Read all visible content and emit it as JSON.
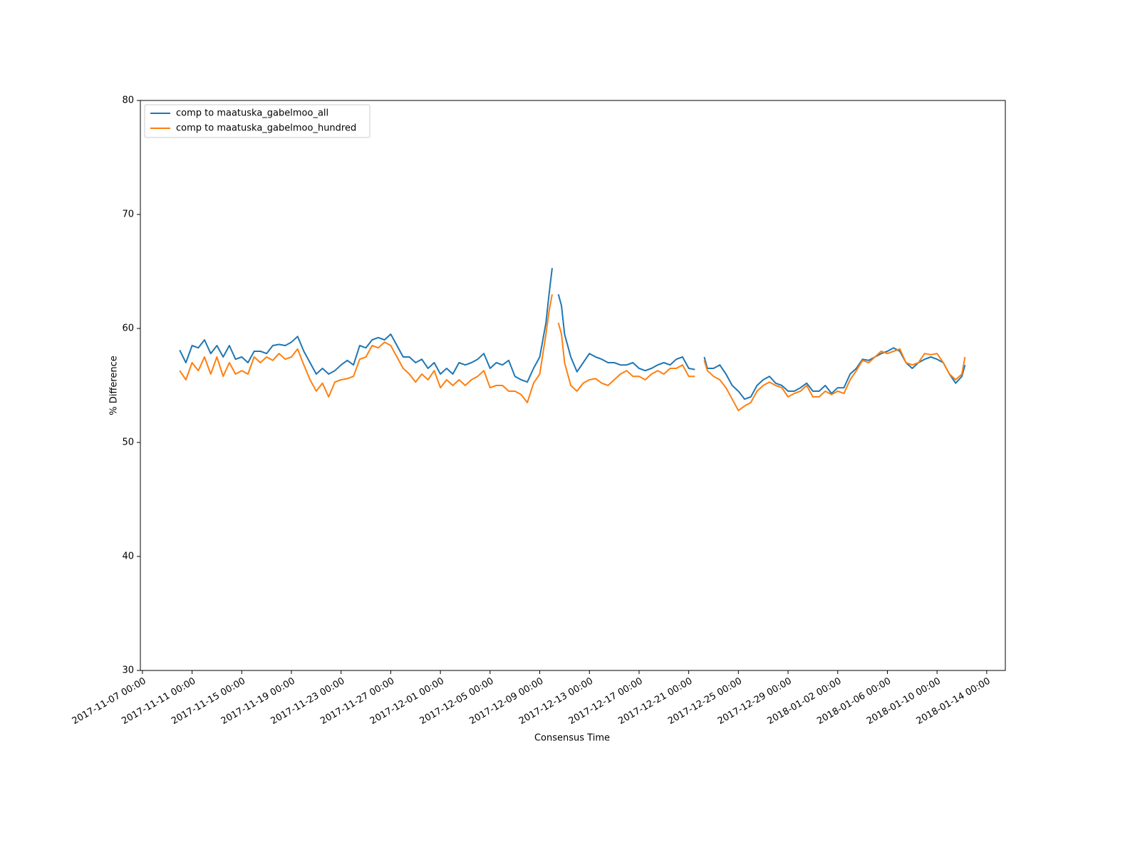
{
  "chart_data": {
    "type": "line",
    "xlabel": "Consensus Time",
    "ylabel": "% Difference",
    "x": [
      "2017-11-10 00:00",
      "2017-11-10 12:00",
      "2017-11-11 00:00",
      "2017-11-11 12:00",
      "2017-11-12 00:00",
      "2017-11-12 12:00",
      "2017-11-13 00:00",
      "2017-11-13 12:00",
      "2017-11-14 00:00",
      "2017-11-14 12:00",
      "2017-11-15 00:00",
      "2017-11-15 12:00",
      "2017-11-16 00:00",
      "2017-11-16 12:00",
      "2017-11-17 00:00",
      "2017-11-17 12:00",
      "2017-11-18 00:00",
      "2017-11-18 12:00",
      "2017-11-19 00:00",
      "2017-11-19 12:00",
      "2017-11-20 00:00",
      "2017-11-20 12:00",
      "2017-11-21 00:00",
      "2017-11-21 12:00",
      "2017-11-22 00:00",
      "2017-11-22 12:00",
      "2017-11-23 00:00",
      "2017-11-23 12:00",
      "2017-11-24 00:00",
      "2017-11-24 12:00",
      "2017-11-25 00:00",
      "2017-11-25 12:00",
      "2017-11-26 00:00",
      "2017-11-26 12:00",
      "2017-11-27 00:00",
      "2017-11-27 12:00",
      "2017-11-28 00:00",
      "2017-11-28 12:00",
      "2017-11-29 00:00",
      "2017-11-29 12:00",
      "2017-11-30 00:00",
      "2017-11-30 12:00",
      "2017-12-01 00:00",
      "2017-12-01 12:00",
      "2017-12-02 00:00",
      "2017-12-02 12:00",
      "2017-12-03 00:00",
      "2017-12-03 12:00",
      "2017-12-04 00:00",
      "2017-12-04 12:00",
      "2017-12-05 00:00",
      "2017-12-05 12:00",
      "2017-12-06 00:00",
      "2017-12-06 12:00",
      "2017-12-07 00:00",
      "2017-12-07 12:00",
      "2017-12-08 00:00",
      "2017-12-08 12:00",
      "2017-12-09 00:00",
      "2017-12-09 12:00",
      "2017-12-09 18:00",
      "2017-12-10 00:00",
      "2017-12-10 06:00",
      "2017-12-10 12:00",
      "2017-12-10 18:00",
      "2017-12-11 00:00",
      "2017-12-11 12:00",
      "2017-12-12 00:00",
      "2017-12-12 12:00",
      "2017-12-13 00:00",
      "2017-12-13 12:00",
      "2017-12-14 00:00",
      "2017-12-14 12:00",
      "2017-12-15 00:00",
      "2017-12-15 12:00",
      "2017-12-16 00:00",
      "2017-12-16 12:00",
      "2017-12-17 00:00",
      "2017-12-17 12:00",
      "2017-12-18 00:00",
      "2017-12-18 12:00",
      "2017-12-19 00:00",
      "2017-12-19 12:00",
      "2017-12-20 00:00",
      "2017-12-20 12:00",
      "2017-12-21 00:00",
      "2017-12-21 12:00",
      "2017-12-22 00:00",
      "2017-12-22 06:00",
      "2017-12-22 12:00",
      "2017-12-23 00:00",
      "2017-12-23 12:00",
      "2017-12-24 00:00",
      "2017-12-24 12:00",
      "2017-12-25 00:00",
      "2017-12-25 12:00",
      "2017-12-26 00:00",
      "2017-12-26 12:00",
      "2017-12-27 00:00",
      "2017-12-27 12:00",
      "2017-12-28 00:00",
      "2017-12-28 12:00",
      "2017-12-29 00:00",
      "2017-12-29 12:00",
      "2017-12-30 00:00",
      "2017-12-30 12:00",
      "2017-12-31 00:00",
      "2017-12-31 12:00",
      "2018-01-01 00:00",
      "2018-01-01 12:00",
      "2018-01-02 00:00",
      "2018-01-02 12:00",
      "2018-01-03 00:00",
      "2018-01-03 12:00",
      "2018-01-04 00:00",
      "2018-01-04 12:00",
      "2018-01-05 00:00",
      "2018-01-05 12:00",
      "2018-01-06 00:00",
      "2018-01-06 12:00",
      "2018-01-07 00:00",
      "2018-01-07 12:00",
      "2018-01-08 00:00",
      "2018-01-08 12:00",
      "2018-01-09 00:00",
      "2018-01-09 12:00",
      "2018-01-10 00:00",
      "2018-01-10 12:00",
      "2018-01-11 00:00",
      "2018-01-11 12:00",
      "2018-01-12 00:00",
      "2018-01-12 06:00"
    ],
    "series": [
      {
        "name": "comp to maatuska_gabelmoo_all",
        "color": "#1f77b4",
        "values": [
          58.1,
          57.0,
          58.5,
          58.3,
          59.0,
          57.8,
          58.5,
          57.5,
          58.5,
          57.3,
          57.5,
          57.0,
          58.0,
          58.0,
          57.8,
          58.5,
          58.6,
          58.5,
          58.8,
          59.3,
          58.0,
          57.0,
          56.0,
          56.5,
          56.0,
          56.3,
          56.8,
          57.2,
          56.8,
          58.5,
          58.3,
          59.0,
          59.2,
          59.0,
          59.5,
          58.5,
          57.5,
          57.5,
          57.0,
          57.3,
          56.5,
          57.0,
          56.0,
          56.5,
          56.0,
          57.0,
          56.8,
          57.0,
          57.3,
          57.8,
          56.5,
          57.0,
          56.8,
          57.2,
          55.8,
          55.5,
          55.3,
          56.5,
          57.5,
          60.5,
          63.0,
          65.3,
          null,
          63.0,
          62.0,
          59.5,
          57.5,
          56.2,
          57.0,
          57.8,
          57.5,
          57.3,
          57.0,
          57.0,
          56.8,
          56.8,
          57.0,
          56.5,
          56.3,
          56.5,
          56.8,
          57.0,
          56.8,
          57.3,
          57.5,
          56.5,
          56.4,
          null,
          57.5,
          56.5,
          56.5,
          56.8,
          56.0,
          55.0,
          54.5,
          53.8,
          54.0,
          55.0,
          55.5,
          55.8,
          55.2,
          55.0,
          54.5,
          54.5,
          54.8,
          55.2,
          54.5,
          54.5,
          55.0,
          54.3,
          54.8,
          54.8,
          56.0,
          56.5,
          57.3,
          57.2,
          57.5,
          57.8,
          58.0,
          58.3,
          58.0,
          57.0,
          56.5,
          57.0,
          57.3,
          57.5,
          57.3,
          57.0,
          56.0,
          55.2,
          55.8,
          56.8
        ]
      },
      {
        "name": "comp to maatuska_gabelmoo_hundred",
        "color": "#ff7f0e",
        "values": [
          56.3,
          55.5,
          57.0,
          56.3,
          57.5,
          56.0,
          57.5,
          55.8,
          57.0,
          56.0,
          56.3,
          56.0,
          57.5,
          57.0,
          57.5,
          57.2,
          57.8,
          57.3,
          57.5,
          58.2,
          56.8,
          55.5,
          54.5,
          55.2,
          54.0,
          55.3,
          55.5,
          55.6,
          55.8,
          57.3,
          57.5,
          58.5,
          58.3,
          58.8,
          58.5,
          57.5,
          56.5,
          56.0,
          55.3,
          56.0,
          55.5,
          56.3,
          54.8,
          55.5,
          55.0,
          55.5,
          55.0,
          55.5,
          55.8,
          56.3,
          54.8,
          55.0,
          55.0,
          54.5,
          54.5,
          54.2,
          53.5,
          55.2,
          56.0,
          59.5,
          61.5,
          63.0,
          null,
          60.5,
          59.5,
          57.0,
          55.0,
          54.5,
          55.2,
          55.5,
          55.6,
          55.2,
          55.0,
          55.5,
          56.0,
          56.3,
          55.8,
          55.8,
          55.5,
          56.0,
          56.3,
          56.0,
          56.5,
          56.5,
          56.8,
          55.8,
          55.8,
          null,
          57.2,
          56.3,
          55.8,
          55.5,
          54.8,
          53.8,
          52.8,
          53.2,
          53.5,
          54.5,
          55.0,
          55.3,
          55.0,
          54.8,
          54.0,
          54.3,
          54.5,
          55.0,
          54.0,
          54.0,
          54.5,
          54.2,
          54.5,
          54.3,
          55.5,
          56.3,
          57.2,
          57.0,
          57.5,
          58.0,
          57.8,
          58.0,
          58.2,
          57.0,
          56.8,
          57.0,
          57.8,
          57.7,
          57.8,
          57.0,
          56.0,
          55.5,
          56.0,
          57.5
        ]
      }
    ],
    "xlim": [
      "2017-11-06 20:00",
      "2018-01-15 12:00"
    ],
    "xticks": [
      "2017-11-07 00:00",
      "2017-11-11 00:00",
      "2017-11-15 00:00",
      "2017-11-19 00:00",
      "2017-11-23 00:00",
      "2017-11-27 00:00",
      "2017-12-01 00:00",
      "2017-12-05 00:00",
      "2017-12-09 00:00",
      "2017-12-13 00:00",
      "2017-12-17 00:00",
      "2017-12-21 00:00",
      "2017-12-25 00:00",
      "2017-12-29 00:00",
      "2018-01-02 00:00",
      "2018-01-06 00:00",
      "2018-01-10 00:00",
      "2018-01-14 00:00"
    ],
    "ylim": [
      30,
      80
    ],
    "yticks": [
      30,
      40,
      50,
      60,
      70,
      80
    ],
    "legend": "upper left",
    "grid": false
  }
}
